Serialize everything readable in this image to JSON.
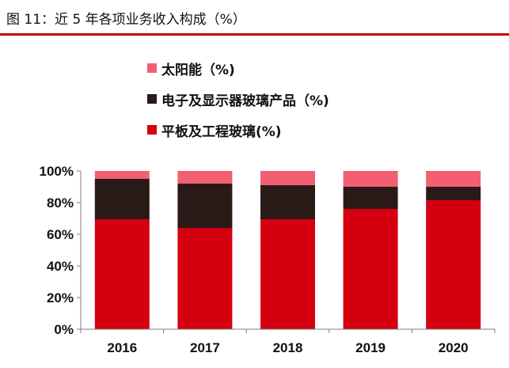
{
  "caption": "图 11：近 5 年各项业务收入构成（%）",
  "colors": {
    "accent": "#c0000c",
    "series": [
      "#d4000f",
      "#2a1a17",
      "#f35f72"
    ]
  },
  "chart_data": {
    "type": "bar",
    "stacked": true,
    "categories": [
      "2016",
      "2017",
      "2018",
      "2019",
      "2020"
    ],
    "series": [
      {
        "name": "平板及工程玻璃(%)",
        "values": [
          69.5,
          64,
          69.5,
          76,
          81.5
        ]
      },
      {
        "name": "电子及显示器玻璃产品（%)",
        "values": [
          25.5,
          28,
          21.5,
          14,
          8.5
        ]
      },
      {
        "name": "太阳能（%)",
        "values": [
          5,
          8,
          9,
          10,
          10
        ]
      }
    ],
    "legend_order": [
      2,
      1,
      0
    ],
    "ylim": [
      0,
      100
    ],
    "yticks": [
      "0%",
      "20%",
      "40%",
      "60%",
      "80%",
      "100%"
    ],
    "legend_position": "top",
    "grid": false
  }
}
